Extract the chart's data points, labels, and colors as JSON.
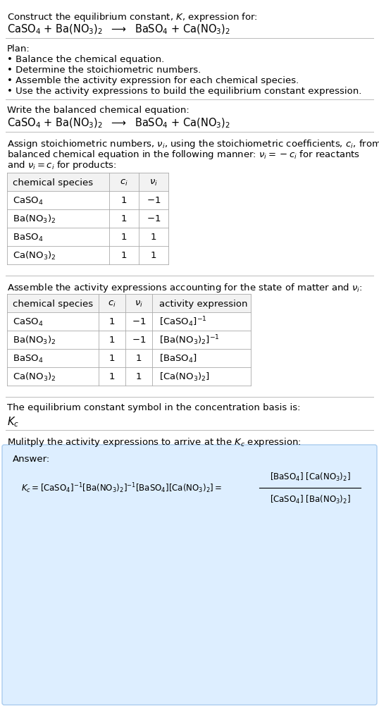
{
  "bg_color": "#ffffff",
  "text_color": "#000000",
  "separator_color": "#bbbbbb",
  "table_header_bg": "#f2f2f2",
  "answer_box_color": "#ddeeff",
  "answer_box_border": "#aaccee",
  "font_size": 9.5,
  "sections": {
    "title_text": "Construct the equilibrium constant, $K$, expression for:",
    "reaction": "CaSO$_4$ + Ba(NO$_3$)$_2$  $\\longrightarrow$  BaSO$_4$ + Ca(NO$_3$)$_2$",
    "plan_header": "Plan:",
    "plan_items": [
      "• Balance the chemical equation.",
      "• Determine the stoichiometric numbers.",
      "• Assemble the activity expression for each chemical species.",
      "• Use the activity expressions to build the equilibrium constant expression."
    ],
    "balanced_header": "Write the balanced chemical equation:",
    "stoich_para": [
      "Assign stoichiometric numbers, $\\nu_i$, using the stoichiometric coefficients, $c_i$, from the",
      "balanced chemical equation in the following manner: $\\nu_i = -c_i$ for reactants",
      "and $\\nu_i = c_i$ for products:"
    ],
    "table1_header": [
      "chemical species",
      "$c_i$",
      "$\\nu_i$"
    ],
    "table1_rows": [
      [
        "CaSO$_4$",
        "1",
        "$-1$"
      ],
      [
        "Ba(NO$_3$)$_2$",
        "1",
        "$-1$"
      ],
      [
        "BaSO$_4$",
        "1",
        "1"
      ],
      [
        "Ca(NO$_3$)$_2$",
        "1",
        "1"
      ]
    ],
    "assemble_header": "Assemble the activity expressions accounting for the state of matter and $\\nu_i$:",
    "table2_header": [
      "chemical species",
      "$c_i$",
      "$\\nu_i$",
      "activity expression"
    ],
    "table2_rows": [
      [
        "CaSO$_4$",
        "1",
        "$-1$",
        "$[\\mathrm{CaSO_4}]^{-1}$"
      ],
      [
        "Ba(NO$_3$)$_2$",
        "1",
        "$-1$",
        "$[\\mathrm{Ba(NO_3)_2}]^{-1}$"
      ],
      [
        "BaSO$_4$",
        "1",
        "1",
        "$[\\mathrm{BaSO_4}]$"
      ],
      [
        "Ca(NO$_3$)$_2$",
        "1",
        "1",
        "$[\\mathrm{Ca(NO_3)_2}]$"
      ]
    ],
    "kc_header": "The equilibrium constant symbol in the concentration basis is:",
    "kc_symbol": "$K_c$",
    "multiply_header": "Mulitply the activity expressions to arrive at the $K_c$ expression:",
    "answer_label": "Answer:",
    "eq_line": "$K_c = [\\mathrm{CaSO_4}]^{-1} [\\mathrm{Ba(NO_3)_2}]^{-1} [\\mathrm{BaSO_4}] [\\mathrm{Ca(NO_3)_2}]$  $=$",
    "frac_num": "$[\\mathrm{BaSO_4}] [\\mathrm{Ca(NO_3)_2}]$",
    "frac_den": "$[\\mathrm{CaSO_4}] [\\mathrm{Ba(NO_3)_2}]$"
  }
}
